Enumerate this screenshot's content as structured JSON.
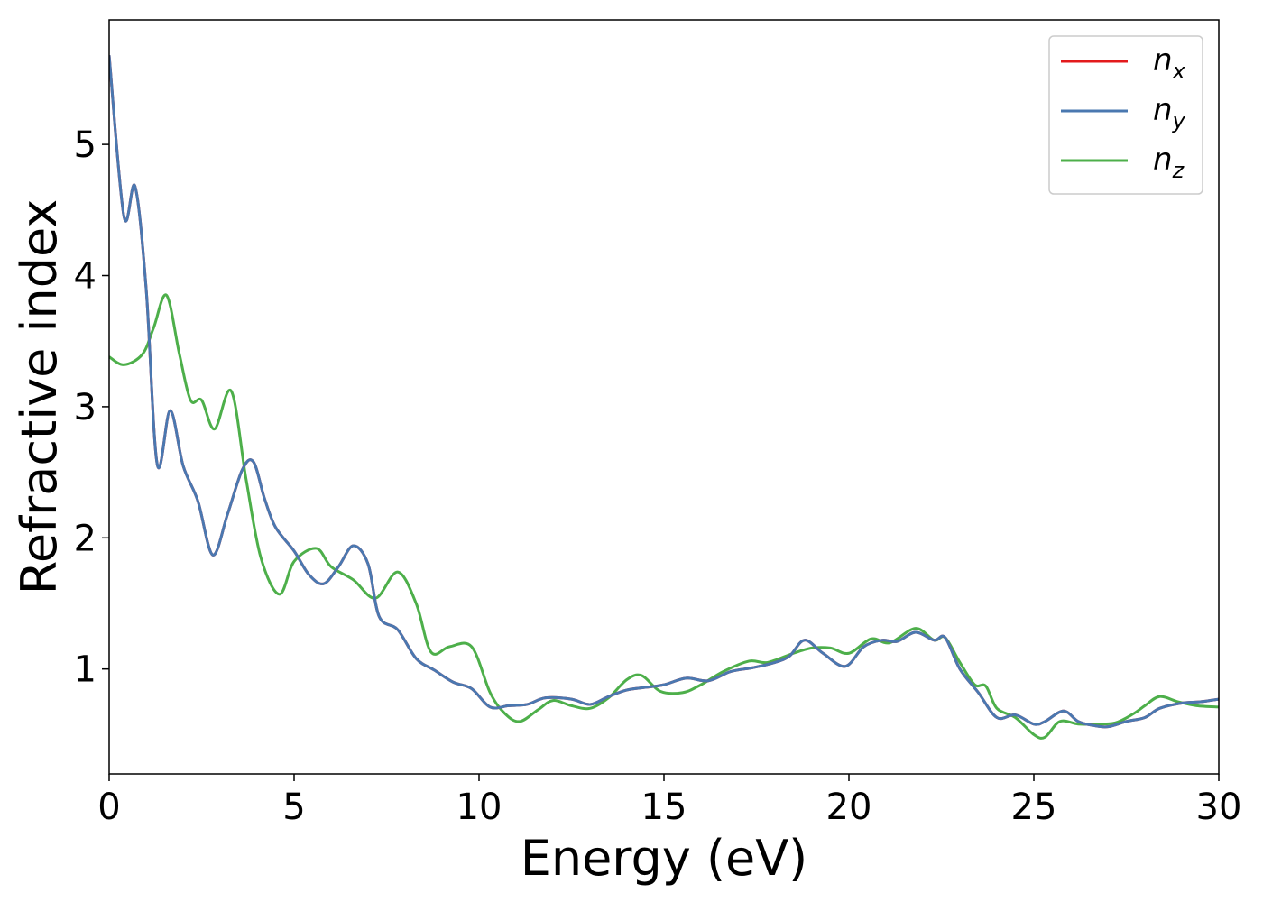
{
  "chart_data": {
    "type": "line",
    "xlabel": "Energy (eV)",
    "ylabel": "Refractive index",
    "xlim": [
      0,
      30
    ],
    "ylim": [
      0.2,
      5.95
    ],
    "xticks": [
      "0",
      "5",
      "10",
      "15",
      "20",
      "25",
      "30"
    ],
    "yticks": [
      "1",
      "2",
      "3",
      "4",
      "5"
    ],
    "grid": false,
    "legend_position": "top-right",
    "series": [
      {
        "name": "n_x",
        "legend_base": "n",
        "legend_sub": "x",
        "color": "#e31a1c",
        "x": [
          0,
          0.4,
          0.7,
          1.0,
          1.3,
          1.65,
          2.0,
          2.4,
          2.8,
          3.2,
          3.6,
          3.9,
          4.2,
          4.5,
          5.0,
          5.4,
          5.8,
          6.2,
          6.6,
          7.0,
          7.3,
          7.8,
          8.3,
          8.8,
          9.3,
          9.8,
          10.3,
          10.8,
          11.3,
          11.8,
          12.5,
          13.0,
          13.5,
          14.0,
          14.5,
          15.0,
          15.6,
          16.2,
          16.8,
          17.4,
          18.0,
          18.4,
          18.8,
          19.3,
          19.9,
          20.4,
          20.9,
          21.3,
          21.8,
          22.3,
          22.6,
          23.0,
          23.5,
          24.0,
          24.5,
          25.0,
          25.3,
          25.8,
          26.2,
          26.6,
          27.0,
          27.5,
          28.0,
          28.4,
          29.0,
          29.5,
          30.0
        ],
        "y": [
          5.68,
          4.45,
          4.68,
          3.9,
          2.56,
          2.97,
          2.55,
          2.28,
          1.87,
          2.18,
          2.52,
          2.58,
          2.3,
          2.08,
          1.9,
          1.72,
          1.65,
          1.78,
          1.94,
          1.8,
          1.4,
          1.3,
          1.08,
          0.99,
          0.9,
          0.85,
          0.71,
          0.72,
          0.73,
          0.78,
          0.77,
          0.73,
          0.79,
          0.84,
          0.86,
          0.88,
          0.93,
          0.91,
          0.98,
          1.01,
          1.05,
          1.1,
          1.22,
          1.12,
          1.02,
          1.17,
          1.22,
          1.21,
          1.28,
          1.22,
          1.24,
          1.0,
          0.82,
          0.63,
          0.65,
          0.58,
          0.6,
          0.68,
          0.6,
          0.57,
          0.56,
          0.6,
          0.63,
          0.7,
          0.74,
          0.75,
          0.77
        ]
      },
      {
        "name": "n_y",
        "legend_base": "n",
        "legend_sub": "y",
        "color": "#4a78b0",
        "x": [
          0,
          0.4,
          0.7,
          1.0,
          1.3,
          1.65,
          2.0,
          2.4,
          2.8,
          3.2,
          3.6,
          3.9,
          4.2,
          4.5,
          5.0,
          5.4,
          5.8,
          6.2,
          6.6,
          7.0,
          7.3,
          7.8,
          8.3,
          8.8,
          9.3,
          9.8,
          10.3,
          10.8,
          11.3,
          11.8,
          12.5,
          13.0,
          13.5,
          14.0,
          14.5,
          15.0,
          15.6,
          16.2,
          16.8,
          17.4,
          18.0,
          18.4,
          18.8,
          19.3,
          19.9,
          20.4,
          20.9,
          21.3,
          21.8,
          22.3,
          22.6,
          23.0,
          23.5,
          24.0,
          24.5,
          25.0,
          25.3,
          25.8,
          26.2,
          26.6,
          27.0,
          27.5,
          28.0,
          28.4,
          29.0,
          29.5,
          30.0
        ],
        "y": [
          5.68,
          4.45,
          4.68,
          3.9,
          2.56,
          2.97,
          2.55,
          2.28,
          1.87,
          2.18,
          2.52,
          2.58,
          2.3,
          2.08,
          1.9,
          1.72,
          1.65,
          1.78,
          1.94,
          1.8,
          1.4,
          1.3,
          1.08,
          0.99,
          0.9,
          0.85,
          0.71,
          0.72,
          0.73,
          0.78,
          0.77,
          0.73,
          0.79,
          0.84,
          0.86,
          0.88,
          0.93,
          0.91,
          0.98,
          1.01,
          1.05,
          1.1,
          1.22,
          1.12,
          1.02,
          1.17,
          1.22,
          1.21,
          1.28,
          1.22,
          1.24,
          1.0,
          0.82,
          0.63,
          0.65,
          0.58,
          0.6,
          0.68,
          0.6,
          0.57,
          0.56,
          0.6,
          0.63,
          0.7,
          0.74,
          0.75,
          0.77
        ]
      },
      {
        "name": "n_z",
        "legend_base": "n",
        "legend_sub": "z",
        "color": "#4daf4a",
        "x": [
          0,
          0.4,
          0.9,
          1.2,
          1.55,
          1.9,
          2.2,
          2.5,
          2.85,
          3.3,
          3.7,
          4.1,
          4.6,
          5.0,
          5.6,
          6.0,
          6.6,
          7.2,
          7.8,
          8.3,
          8.7,
          9.2,
          9.8,
          10.3,
          10.7,
          11.1,
          11.6,
          12.0,
          12.5,
          13.0,
          13.5,
          14.0,
          14.4,
          14.9,
          15.5,
          16.0,
          16.6,
          17.3,
          17.8,
          18.5,
          19.0,
          19.5,
          20.0,
          20.6,
          21.1,
          21.8,
          22.3,
          22.6,
          23.0,
          23.4,
          23.7,
          24.0,
          24.5,
          25.0,
          25.3,
          25.7,
          26.2,
          26.6,
          27.2,
          27.7,
          28.0,
          28.4,
          28.9,
          29.4,
          30.0
        ],
        "y": [
          3.38,
          3.32,
          3.4,
          3.6,
          3.85,
          3.4,
          3.05,
          3.05,
          2.83,
          3.12,
          2.45,
          1.85,
          1.57,
          1.82,
          1.92,
          1.78,
          1.68,
          1.54,
          1.74,
          1.5,
          1.13,
          1.17,
          1.17,
          0.82,
          0.66,
          0.6,
          0.69,
          0.76,
          0.72,
          0.7,
          0.78,
          0.92,
          0.95,
          0.83,
          0.82,
          0.88,
          0.98,
          1.06,
          1.05,
          1.12,
          1.16,
          1.16,
          1.12,
          1.23,
          1.2,
          1.31,
          1.22,
          1.24,
          1.05,
          0.88,
          0.87,
          0.7,
          0.63,
          0.5,
          0.48,
          0.6,
          0.58,
          0.58,
          0.59,
          0.66,
          0.72,
          0.79,
          0.75,
          0.72,
          0.71
        ]
      }
    ]
  }
}
